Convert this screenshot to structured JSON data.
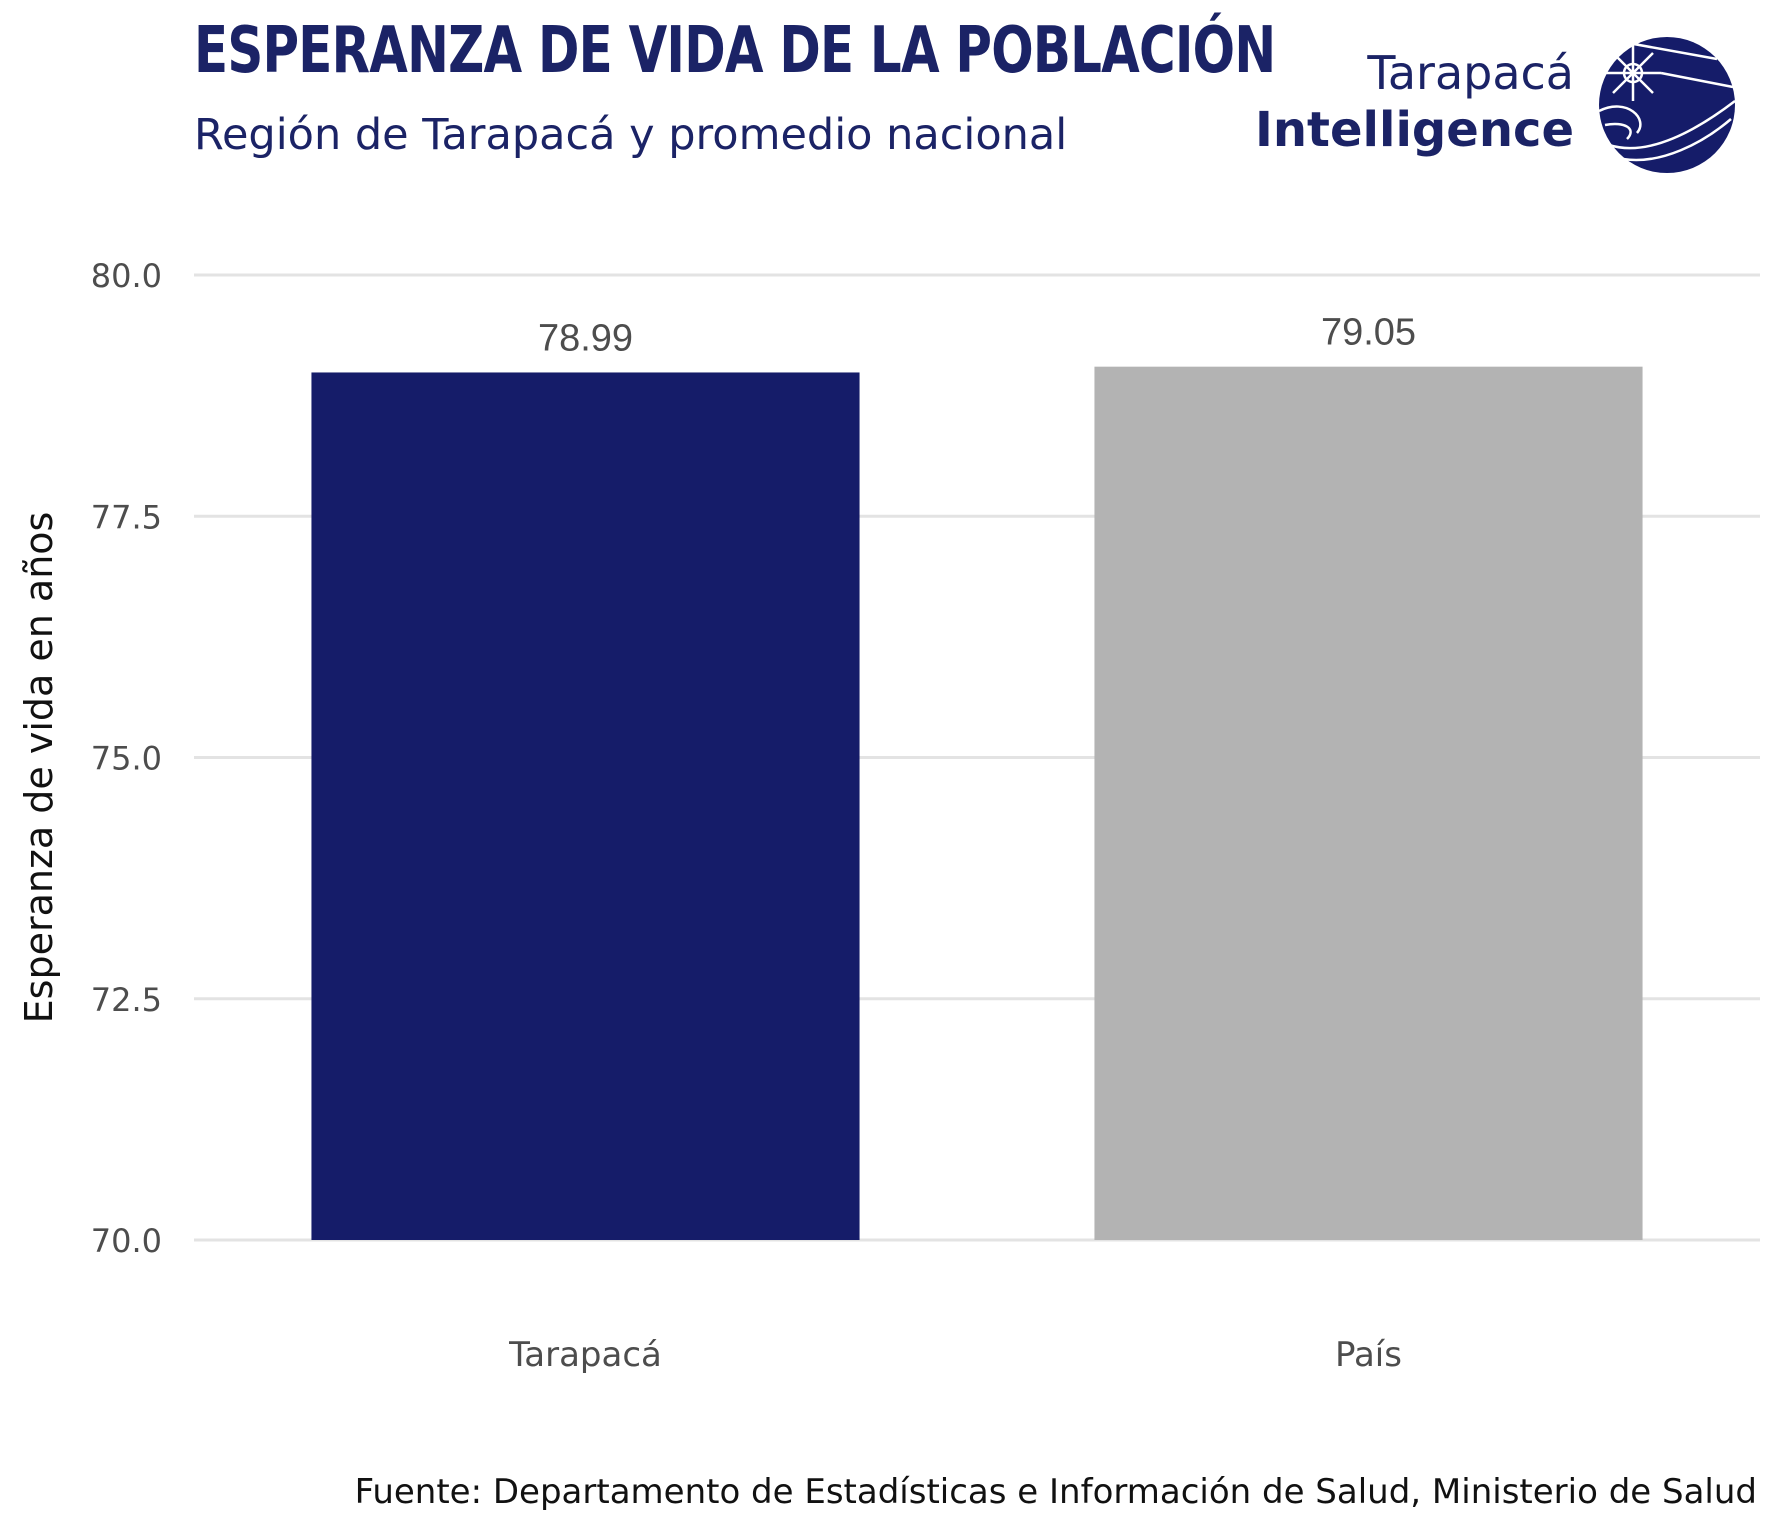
{
  "header": {
    "title": "ESPERANZA DE VIDA DE LA POBLACIÓN",
    "subtitle": "Región de Tarapacá y promedio nacional"
  },
  "logo": {
    "line1": "Tarapacá",
    "line2": "Intelligence",
    "icon": "globe-logo-icon",
    "color": "#151c69"
  },
  "chart_data": {
    "type": "bar",
    "categories": [
      "Tarapacá",
      "País"
    ],
    "values": [
      78.99,
      79.05
    ],
    "data_labels": [
      "78.99",
      "79.05"
    ],
    "colors": [
      "#151c69",
      "#b3b3b3"
    ],
    "ylabel": "Esperanza de vida en años",
    "xlabel": "",
    "ylim": [
      70,
      80
    ],
    "yticks": [
      "70.0",
      "72.5",
      "75.0",
      "77.5",
      "80.0"
    ],
    "grid": true,
    "legend": "none"
  },
  "footer": {
    "source": "Fuente: Departamento de Estadísticas e Información de Salud, Ministerio de Salud"
  }
}
